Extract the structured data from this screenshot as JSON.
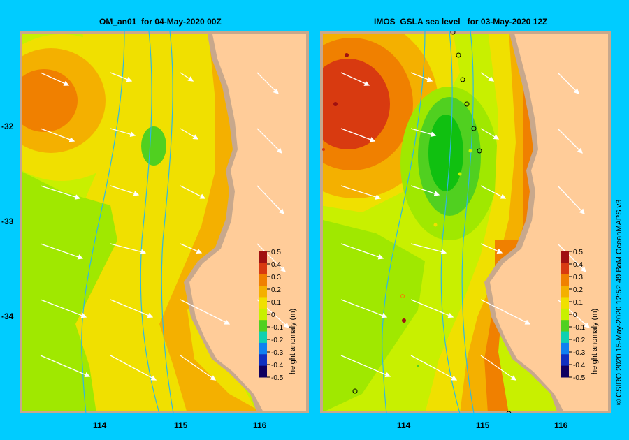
{
  "panels": [
    {
      "title": "OM_an01  for 04-May-2020 00Z"
    },
    {
      "title": "IMOS  GSLA sea level   for 03-May-2020 12Z"
    }
  ],
  "axes": {
    "lat_labels": [
      "-32",
      "-33",
      "-34"
    ],
    "lon_labels_left": [
      "114",
      "115",
      "116"
    ],
    "lon_labels_right": [
      "114",
      "115",
      "116"
    ]
  },
  "colorbar": {
    "label": "height anomaly (m)",
    "ticks": [
      "0.5",
      "0.4",
      "0.3",
      "0.2",
      "0.1",
      "0",
      "-0.1",
      "-0.2",
      "-0.3",
      "-0.4",
      "-0.5"
    ],
    "colors": [
      "#a01010",
      "#d83a10",
      "#f08000",
      "#f4b000",
      "#f0e000",
      "#c8f000",
      "#50d020",
      "#10d0b0",
      "#1080f0",
      "#1030c0",
      "#100060"
    ]
  },
  "credit": "© CSIRO 2020    15-May-2020 12:52:49 BoM OceanMAPS v3",
  "colors": {
    "background": "#00ccff",
    "land": "#ffcc99",
    "shore": "#c8a88c"
  }
}
